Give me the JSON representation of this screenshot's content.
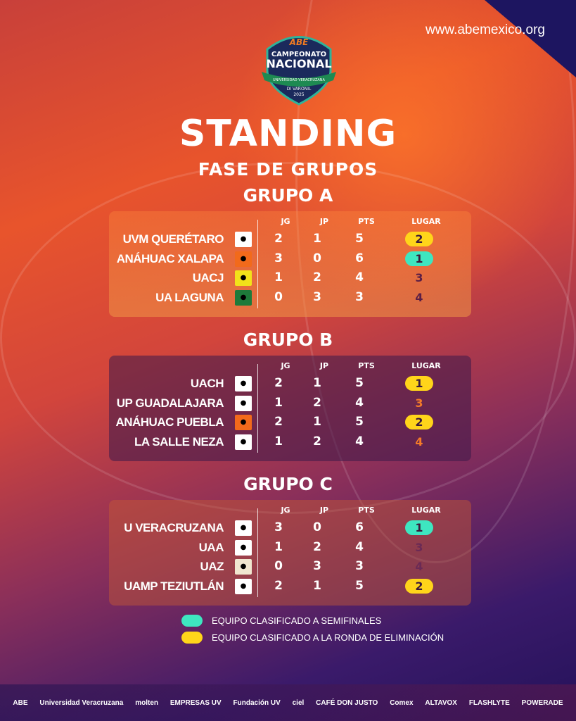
{
  "website": "www.abemexico.org",
  "event_logo": {
    "brand": "ABE",
    "line1": "CAMPEONATO",
    "line2": "NACIONAL",
    "ribbon": "UNIVERSIDAD VERACRUZANA",
    "line3": "DI VARONIL",
    "year": "2025"
  },
  "title": "STANDING",
  "subtitle": "FASE DE GRUPOS",
  "columns": [
    "JG",
    "JP",
    "PTS",
    "LUGAR"
  ],
  "colors": {
    "semifinal": "#3ee6c0",
    "elimination": "#ffd51a"
  },
  "groups": [
    {
      "name": "GRUPO A",
      "teams": [
        {
          "team": "UVM QUERÉTARO",
          "jg": "2",
          "jp": "1",
          "pts": "5",
          "lugar": "2",
          "status": "elimination"
        },
        {
          "team": "ANÁHUAC XALAPA",
          "jg": "3",
          "jp": "0",
          "pts": "6",
          "lugar": "1",
          "status": "semifinal"
        },
        {
          "team": "UACJ",
          "jg": "1",
          "jp": "2",
          "pts": "4",
          "lugar": "3",
          "status": "none"
        },
        {
          "team": "UA LAGUNA",
          "jg": "0",
          "jp": "3",
          "pts": "3",
          "lugar": "4",
          "status": "none"
        }
      ]
    },
    {
      "name": "GRUPO B",
      "teams": [
        {
          "team": "UACH",
          "jg": "2",
          "jp": "1",
          "pts": "5",
          "lugar": "1",
          "status": "elimination"
        },
        {
          "team": "UP GUADALAJARA",
          "jg": "1",
          "jp": "2",
          "pts": "4",
          "lugar": "3",
          "status": "none"
        },
        {
          "team": "ANÁHUAC PUEBLA",
          "jg": "2",
          "jp": "1",
          "pts": "5",
          "lugar": "2",
          "status": "elimination"
        },
        {
          "team": "LA SALLE NEZA",
          "jg": "1",
          "jp": "2",
          "pts": "4",
          "lugar": "4",
          "status": "none"
        }
      ]
    },
    {
      "name": "GRUPO C",
      "teams": [
        {
          "team": "U VERACRUZANA",
          "jg": "3",
          "jp": "0",
          "pts": "6",
          "lugar": "1",
          "status": "semifinal"
        },
        {
          "team": "UAA",
          "jg": "1",
          "jp": "2",
          "pts": "4",
          "lugar": "3",
          "status": "none"
        },
        {
          "team": "UAZ",
          "jg": "0",
          "jp": "3",
          "pts": "3",
          "lugar": "4",
          "status": "none"
        },
        {
          "team": "UAMP TEZIUTLÁN",
          "jg": "2",
          "jp": "1",
          "pts": "5",
          "lugar": "2",
          "status": "elimination"
        }
      ]
    }
  ],
  "legend": [
    {
      "label": "EQUIPO CLASIFICADO A SEMIFINALES",
      "status": "semifinal"
    },
    {
      "label": "EQUIPO CLASIFICADO A LA RONDA DE ELIMINACIÓN",
      "status": "elimination"
    }
  ],
  "sponsors": [
    "ABE",
    "Universidad Veracruzana",
    "molten",
    "EMPRESAS UV",
    "Fundación UV",
    "ciel",
    "CAFÉ DON JUSTO",
    "Comex",
    "ALTAVOX",
    "FLASHLYTE",
    "POWERADE"
  ]
}
